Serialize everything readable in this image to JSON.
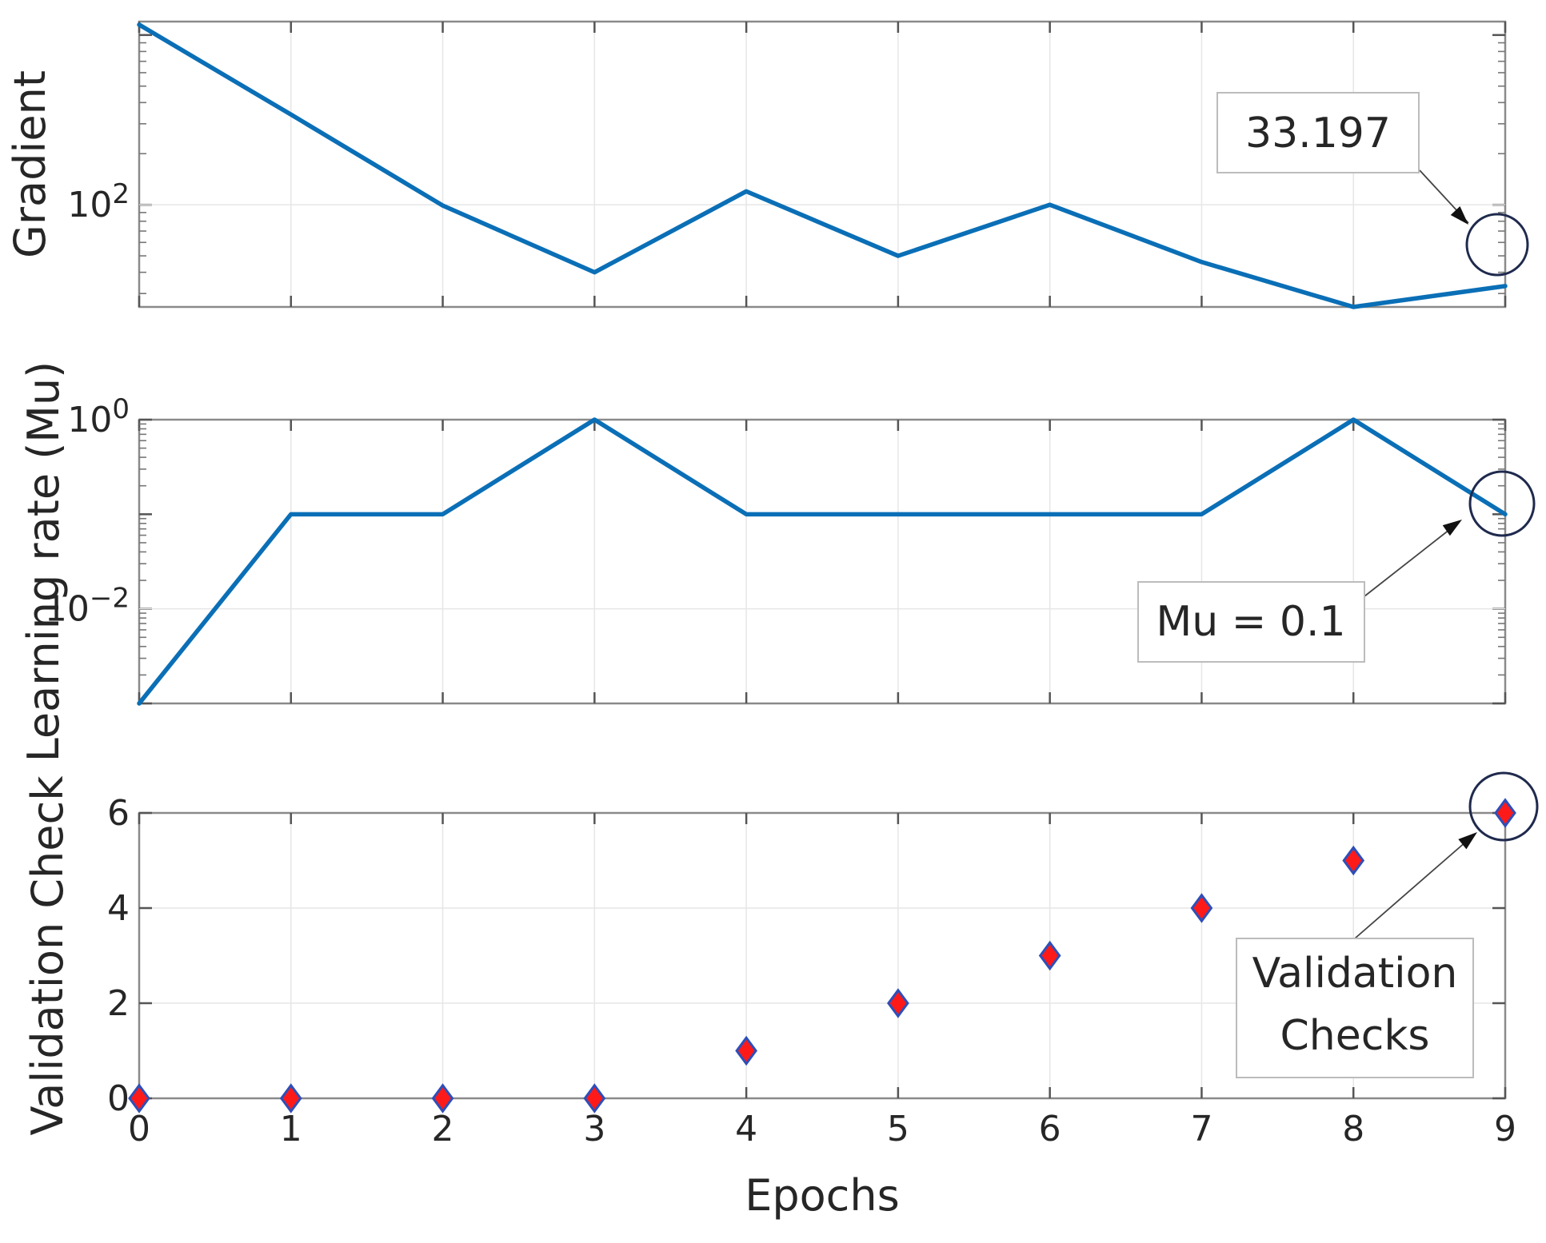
{
  "chart_data": [
    {
      "type": "line",
      "ylabel": "Gradient",
      "y_scale": "log",
      "ylim": [
        25,
        1200
      ],
      "y_ticks": [
        100
      ],
      "y_tick_labels": [
        {
          "base": "10",
          "exp": "2"
        }
      ],
      "x": [
        0,
        1,
        2,
        3,
        4,
        5,
        6,
        7,
        8,
        9
      ],
      "series": [
        {
          "values": [
            1150,
            340,
            99,
            40,
            120,
            50,
            100,
            46,
            25,
            33.197
          ]
        }
      ],
      "annotation": {
        "text": "33.197",
        "point_index": 9
      },
      "grid": true,
      "color": "#0a6fb6"
    },
    {
      "type": "line",
      "ylabel": "Learning rate (Mu)",
      "y_scale": "log",
      "ylim": [
        0.001,
        1
      ],
      "y_ticks": [
        1,
        0.01
      ],
      "y_tick_labels": [
        {
          "base": "10",
          "exp": "0"
        },
        {
          "base": "10",
          "exp": "−2"
        }
      ],
      "x": [
        0,
        1,
        2,
        3,
        4,
        5,
        6,
        7,
        8,
        9
      ],
      "series": [
        {
          "values": [
            0.001,
            0.1,
            0.1,
            1,
            0.1,
            0.1,
            0.1,
            0.1,
            1,
            0.1
          ]
        }
      ],
      "annotation": {
        "text": "Mu = 0.1",
        "point_index": 9
      },
      "grid": true,
      "color": "#0a6fb6"
    },
    {
      "type": "scatter",
      "ylabel": "Validation Check",
      "xlabel": "Epochs",
      "y_scale": "linear",
      "ylim": [
        0,
        6
      ],
      "y_ticks": [
        0,
        2,
        4,
        6
      ],
      "y_tick_labels": [
        "0",
        "2",
        "4",
        "6"
      ],
      "x": [
        0,
        1,
        2,
        3,
        4,
        5,
        6,
        7,
        8,
        9
      ],
      "x_tick_labels": [
        "0",
        "1",
        "2",
        "3",
        "4",
        "5",
        "6",
        "7",
        "8",
        "9"
      ],
      "series": [
        {
          "values": [
            0,
            0,
            0,
            0,
            1,
            2,
            3,
            4,
            5,
            6
          ]
        }
      ],
      "annotation": {
        "text_lines": [
          "Validation",
          "Checks"
        ],
        "point_index": 9
      },
      "grid": true,
      "marker": "diamond",
      "marker_fill": "#ff1a1a",
      "marker_edge": "#2e4fb8"
    }
  ]
}
